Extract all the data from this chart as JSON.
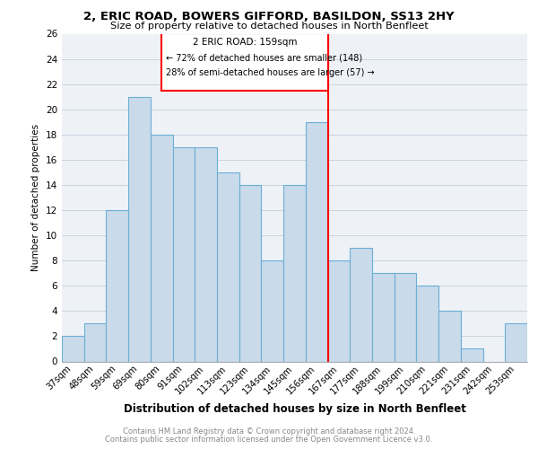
{
  "title1": "2, ERIC ROAD, BOWERS GIFFORD, BASILDON, SS13 2HY",
  "title2": "Size of property relative to detached houses in North Benfleet",
  "xlabel": "Distribution of detached houses by size in North Benfleet",
  "ylabel": "Number of detached properties",
  "categories": [
    "37sqm",
    "48sqm",
    "59sqm",
    "69sqm",
    "80sqm",
    "91sqm",
    "102sqm",
    "113sqm",
    "123sqm",
    "134sqm",
    "145sqm",
    "156sqm",
    "167sqm",
    "177sqm",
    "188sqm",
    "199sqm",
    "210sqm",
    "221sqm",
    "231sqm",
    "242sqm",
    "253sqm"
  ],
  "values": [
    2,
    3,
    12,
    21,
    18,
    17,
    17,
    15,
    14,
    8,
    14,
    19,
    8,
    9,
    7,
    7,
    6,
    4,
    1,
    0,
    3
  ],
  "bar_color": "#c9daea",
  "bar_edge_color": "#6baed6",
  "reference_line_index": 12,
  "reference_label": "2 ERIC ROAD: 159sqm",
  "annotation_line1": "← 72% of detached houses are smaller (148)",
  "annotation_line2": "28% of semi-detached houses are larger (57) →",
  "ylim": [
    0,
    26
  ],
  "yticks": [
    0,
    2,
    4,
    6,
    8,
    10,
    12,
    14,
    16,
    18,
    20,
    22,
    24,
    26
  ],
  "footnote1": "Contains HM Land Registry data © Crown copyright and database right 2024.",
  "footnote2": "Contains public sector information licensed under the Open Government Licence v3.0.",
  "grid_color": "#c8d4e0",
  "bg_color": "#eef2f7"
}
